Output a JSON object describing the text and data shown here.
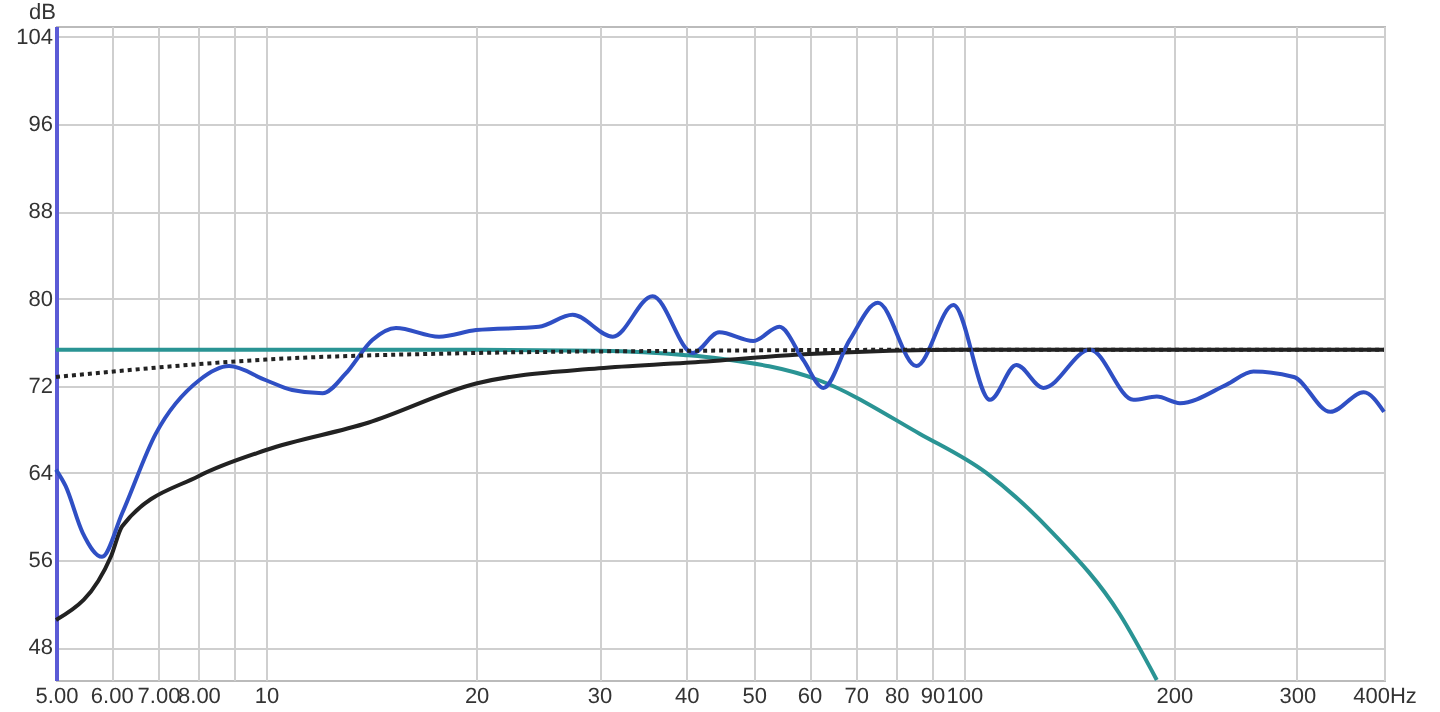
{
  "chart_data": {
    "type": "line",
    "ylabel": "dB",
    "log": "x",
    "grid": true,
    "marker": "none",
    "xlim": [
      5,
      400
    ],
    "ylim": [
      45,
      105
    ],
    "xticks": [
      {
        "value": 5,
        "label": "5.00"
      },
      {
        "value": 6,
        "label": "6.00"
      },
      {
        "value": 7,
        "label": "7.00"
      },
      {
        "value": 8,
        "label": "8.00"
      },
      {
        "value": 9,
        "label": null
      },
      10,
      20,
      30,
      40,
      50,
      60,
      70,
      80,
      90,
      100,
      200,
      300,
      {
        "value": 400,
        "label": "400Hz"
      }
    ],
    "yticks": [
      48,
      56,
      64,
      72,
      80,
      88,
      96,
      104
    ],
    "series": [
      {
        "color": "#2a9494",
        "line_style": "solid",
        "x": [
          5,
          20,
          30,
          40,
          44.6,
          62,
          86.4,
          107.7,
          134,
          167,
          189
        ],
        "values": [
          75.3,
          75.3,
          75.2,
          74.8,
          74.5,
          72.5,
          67.6,
          64,
          58.5,
          51.1,
          45
        ]
      },
      {
        "color": "#222222",
        "line_style": "solid",
        "x": [
          5,
          6,
          6.22,
          8,
          10,
          14,
          20,
          30,
          40,
          60,
          100,
          400
        ],
        "values": [
          50.5,
          56.4,
          59.1,
          63.7,
          66.1,
          68.6,
          72.2,
          73.6,
          74.1,
          74.9,
          75.3,
          75.3
        ]
      },
      {
        "color": "#222222",
        "line_style": "dotted",
        "x": [
          5,
          10,
          20,
          40,
          100,
          400
        ],
        "values": [
          72.8,
          74.4,
          75.0,
          75.2,
          75.3,
          75.3
        ]
      },
      {
        "color": "#2f4fc4",
        "line_style": "solid",
        "x": [
          5,
          5.16,
          5.46,
          5.82,
          6.22,
          6.95,
          8.02,
          8.85,
          10,
          10.9,
          12.05,
          13,
          14.2,
          15.35,
          17.7,
          20,
          24.6,
          27.5,
          31.4,
          35.8,
          40.9,
          44.6,
          49.9,
          54.4,
          58.8,
          62.9,
          68.6,
          75.3,
          85.5,
          96.6,
          109,
          118.9,
          130,
          151.6,
          175,
          189,
          204,
          238,
          260,
          297,
          335,
          374,
          400
        ],
        "values": [
          64.3,
          62.8,
          58.5,
          56.3,
          60.3,
          67.6,
          72.5,
          73.8,
          72.5,
          71.6,
          71.3,
          73.1,
          76.2,
          77.3,
          76.5,
          77.1,
          77.4,
          78.5,
          76.5,
          80.2,
          75.0,
          76.9,
          76.1,
          77.4,
          74.4,
          71.8,
          76.2,
          79.6,
          73.8,
          79.4,
          70.7,
          73.9,
          71.8,
          75.3,
          70.7,
          71.0,
          70.4,
          72.1,
          73.3,
          72.8,
          69.6,
          71.4,
          69.6
        ]
      }
    ]
  }
}
